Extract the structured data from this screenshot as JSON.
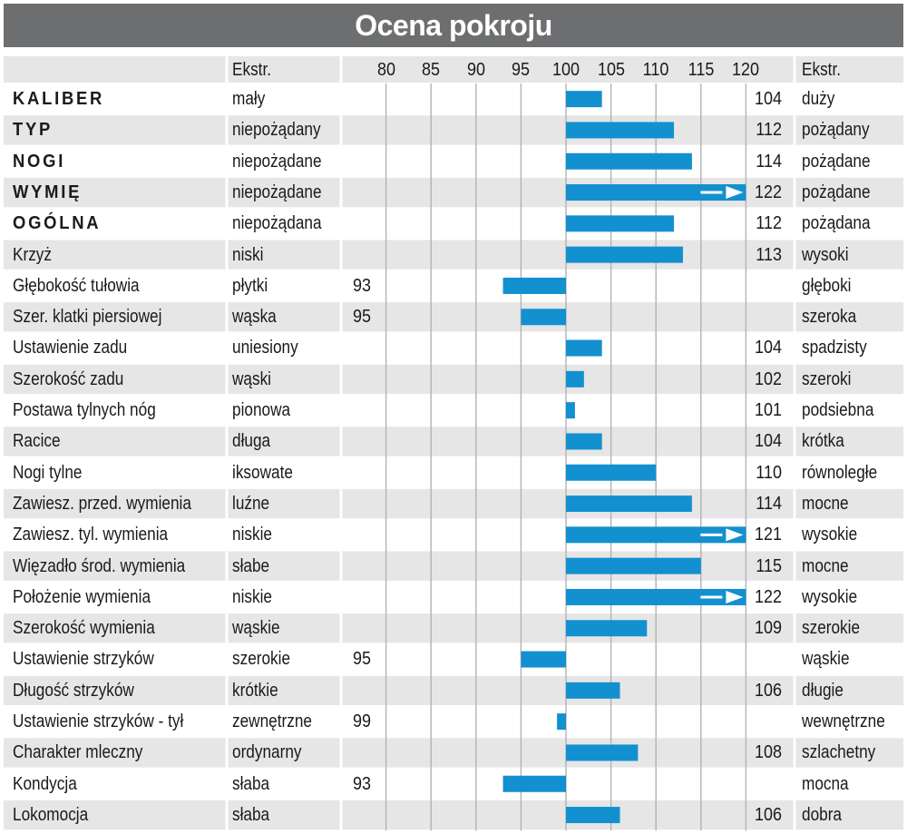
{
  "title": "Ocena pokroju",
  "header": {
    "left_label": "Ekstr.",
    "right_label": "Ekstr."
  },
  "chart_data": {
    "type": "bar",
    "orientation": "horizontal",
    "baseline": 100,
    "xlim": [
      75,
      125
    ],
    "ticks": [
      80,
      85,
      90,
      95,
      100,
      105,
      110,
      115,
      120
    ],
    "grid": true,
    "bar_color": "#1390cf",
    "arrow_marker_color": "#ffffff",
    "rows": [
      {
        "trait": "KALIBER",
        "bold": true,
        "low": "mały",
        "high": "duży",
        "value": 104,
        "arrow": false
      },
      {
        "trait": "TYP",
        "bold": true,
        "low": "niepożądany",
        "high": "pożądany",
        "value": 112,
        "arrow": false
      },
      {
        "trait": "NOGI",
        "bold": true,
        "low": "niepożądane",
        "high": "pożądane",
        "value": 114,
        "arrow": false
      },
      {
        "trait": "WYMIĘ",
        "bold": true,
        "low": "niepożądane",
        "high": "pożądane",
        "value": 122,
        "arrow": true
      },
      {
        "trait": "OGÓLNA",
        "bold": true,
        "low": "niepożądana",
        "high": "pożądana",
        "value": 112,
        "arrow": false
      },
      {
        "trait": "Krzyż",
        "bold": false,
        "low": "niski",
        "high": "wysoki",
        "value": 113,
        "arrow": false
      },
      {
        "trait": "Głębokość tułowia",
        "bold": false,
        "low": "płytki",
        "high": "głęboki",
        "value": 93,
        "arrow": false
      },
      {
        "trait": "Szer. klatki piersiowej",
        "bold": false,
        "low": "wąska",
        "high": "szeroka",
        "value": 95,
        "arrow": false
      },
      {
        "trait": "Ustawienie zadu",
        "bold": false,
        "low": "uniesiony",
        "high": "spadzisty",
        "value": 104,
        "arrow": false
      },
      {
        "trait": "Szerokość zadu",
        "bold": false,
        "low": "wąski",
        "high": "szeroki",
        "value": 102,
        "arrow": false
      },
      {
        "trait": "Postawa tylnych nóg",
        "bold": false,
        "low": "pionowa",
        "high": "podsiebna",
        "value": 101,
        "arrow": false
      },
      {
        "trait": "Racice",
        "bold": false,
        "low": "długa",
        "high": "krótka",
        "value": 104,
        "arrow": false
      },
      {
        "trait": "Nogi tylne",
        "bold": false,
        "low": "iksowate",
        "high": "równoległe",
        "value": 110,
        "arrow": false
      },
      {
        "trait": "Zawiesz. przed. wymienia",
        "bold": false,
        "low": "luźne",
        "high": "mocne",
        "value": 114,
        "arrow": false
      },
      {
        "trait": "Zawiesz. tyl. wymienia",
        "bold": false,
        "low": "niskie",
        "high": "wysokie",
        "value": 121,
        "arrow": true
      },
      {
        "trait": "Więzadło środ. wymienia",
        "bold": false,
        "low": "słabe",
        "high": "mocne",
        "value": 115,
        "arrow": false
      },
      {
        "trait": "Położenie wymienia",
        "bold": false,
        "low": "niskie",
        "high": "wysokie",
        "value": 122,
        "arrow": true
      },
      {
        "trait": "Szerokość wymienia",
        "bold": false,
        "low": "wąskie",
        "high": "szerokie",
        "value": 109,
        "arrow": false
      },
      {
        "trait": "Ustawienie strzyków",
        "bold": false,
        "low": "szerokie",
        "high": "wąskie",
        "value": 95,
        "arrow": false
      },
      {
        "trait": "Długość strzyków",
        "bold": false,
        "low": "krótkie",
        "high": "długie",
        "value": 106,
        "arrow": false
      },
      {
        "trait": "Ustawienie strzyków - tył",
        "bold": false,
        "low": "zewnętrzne",
        "high": "wewnętrzne",
        "value": 99,
        "arrow": false
      },
      {
        "trait": "Charakter mleczny",
        "bold": false,
        "low": "ordynarny",
        "high": "szlachetny",
        "value": 108,
        "arrow": false
      },
      {
        "trait": "Kondycja",
        "bold": false,
        "low": "słaba",
        "high": "mocna",
        "value": 93,
        "arrow": false
      },
      {
        "trait": "Lokomocja",
        "bold": false,
        "low": "słaba",
        "high": "dobra",
        "value": 106,
        "arrow": false
      }
    ]
  }
}
